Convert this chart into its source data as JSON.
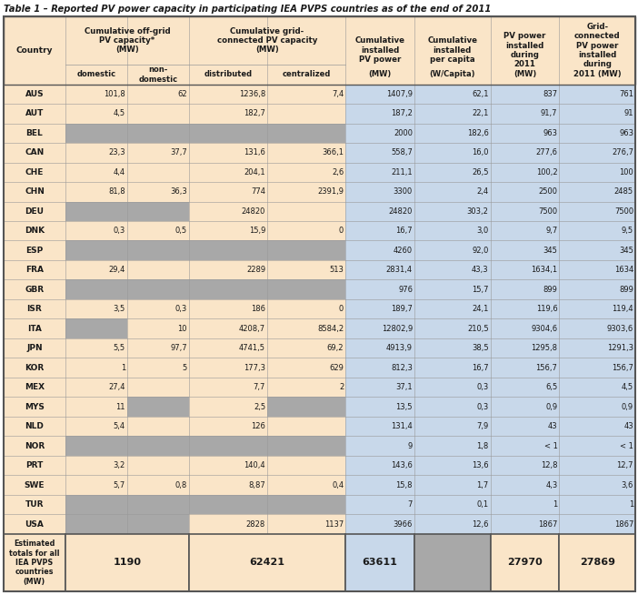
{
  "title": "Table 1 – Reported PV power capacity in participating IEA PVPS countries as of the end of 2011",
  "rows": [
    [
      "AUS",
      "101,8",
      "62",
      "1236,8",
      "7,4",
      "1407,9",
      "62,1",
      "837",
      "761"
    ],
    [
      "AUT",
      "4,5",
      "",
      "182,7",
      "",
      "187,2",
      "22,1",
      "91,7",
      "91"
    ],
    [
      "BEL",
      "grey",
      "grey",
      "grey",
      "grey",
      "2000",
      "182,6",
      "963",
      "963"
    ],
    [
      "CAN",
      "23,3",
      "37,7",
      "131,6",
      "366,1",
      "558,7",
      "16,0",
      "277,6",
      "276,7"
    ],
    [
      "CHE",
      "4,4",
      "",
      "204,1",
      "2,6",
      "211,1",
      "26,5",
      "100,2",
      "100"
    ],
    [
      "CHN",
      "81,8",
      "36,3",
      "774",
      "2391,9",
      "3300",
      "2,4",
      "2500",
      "2485"
    ],
    [
      "DEU",
      "grey",
      "grey",
      "24820",
      "",
      "24820",
      "303,2",
      "7500",
      "7500"
    ],
    [
      "DNK",
      "0,3",
      "0,5",
      "15,9",
      "0",
      "16,7",
      "3,0",
      "9,7",
      "9,5"
    ],
    [
      "ESP",
      "grey",
      "grey",
      "grey",
      "grey",
      "4260",
      "92,0",
      "345",
      "345"
    ],
    [
      "FRA",
      "29,4",
      "",
      "2289",
      "513",
      "2831,4",
      "43,3",
      "1634,1",
      "1634"
    ],
    [
      "GBR",
      "grey",
      "grey",
      "grey",
      "grey",
      "976",
      "15,7",
      "899",
      "899"
    ],
    [
      "ISR",
      "3,5",
      "0,3",
      "186",
      "0",
      "189,7",
      "24,1",
      "119,6",
      "119,4"
    ],
    [
      "ITA",
      "grey",
      "10",
      "4208,7",
      "8584,2",
      "12802,9",
      "210,5",
      "9304,6",
      "9303,6"
    ],
    [
      "JPN",
      "5,5",
      "97,7",
      "4741,5",
      "69,2",
      "4913,9",
      "38,5",
      "1295,8",
      "1291,3"
    ],
    [
      "KOR",
      "1",
      "5",
      "177,3",
      "629",
      "812,3",
      "16,7",
      "156,7",
      "156,7"
    ],
    [
      "MEX",
      "27,4",
      "",
      "7,7",
      "2",
      "37,1",
      "0,3",
      "6,5",
      "4,5"
    ],
    [
      "MYS",
      "11",
      "grey",
      "2,5",
      "grey",
      "13,5",
      "0,3",
      "0,9",
      "0,9"
    ],
    [
      "NLD",
      "5,4",
      "",
      "126",
      "",
      "131,4",
      "7,9",
      "43",
      "43"
    ],
    [
      "NOR",
      "grey",
      "grey",
      "grey",
      "grey",
      "9",
      "1,8",
      "< 1",
      "< 1"
    ],
    [
      "PRT",
      "3,2",
      "",
      "140,4",
      "",
      "143,6",
      "13,6",
      "12,8",
      "12,7"
    ],
    [
      "SWE",
      "5,7",
      "0,8",
      "8,87",
      "0,4",
      "15,8",
      "1,7",
      "4,3",
      "3,6"
    ],
    [
      "TUR",
      "grey",
      "grey",
      "grey",
      "grey",
      "7",
      "0,1",
      "1",
      "1"
    ],
    [
      "USA",
      "grey",
      "grey",
      "2828",
      "1137",
      "3966",
      "12,6",
      "1867",
      "1867"
    ]
  ],
  "footer": [
    "Estimated\ntotals for all\nIEA PVPS\ncountries\n(MW)",
    "1190",
    "",
    "62421",
    "",
    "63611",
    "",
    "27970",
    "27869"
  ],
  "bg_peach": "#FAE5C8",
  "bg_blue": "#C8D8EA",
  "bg_grey": "#A8A8A8",
  "border_color": "#999999",
  "border_dark": "#555555",
  "text_color": "#1A1A1A"
}
